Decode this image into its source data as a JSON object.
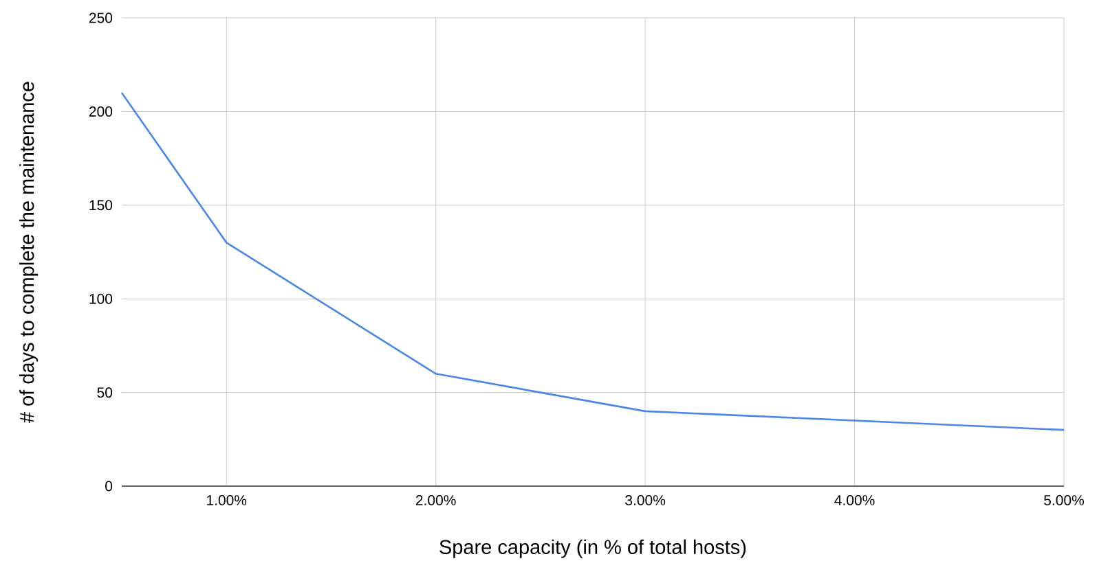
{
  "chart_data": {
    "type": "line",
    "xlabel": "Spare capacity (in % of total hosts)",
    "ylabel": "# of days to complete the maintenance",
    "x": [
      0.5,
      1,
      2,
      3,
      4,
      5
    ],
    "series": [
      {
        "color": "#4a86e8",
        "values": [
          210,
          130,
          60,
          40,
          35,
          30
        ]
      }
    ],
    "xlim": [
      0.5,
      5
    ],
    "ylim": [
      0,
      250
    ],
    "xticks": [
      {
        "value": 1,
        "label": "1.00%"
      },
      {
        "value": 2,
        "label": "2.00%"
      },
      {
        "value": 3,
        "label": "3.00%"
      },
      {
        "value": 4,
        "label": "4.00%"
      },
      {
        "value": 5,
        "label": "5.00%"
      }
    ],
    "yticks": [
      0,
      50,
      100,
      150,
      200,
      250
    ],
    "grid": true,
    "marker": "none",
    "line_style": "solid"
  }
}
